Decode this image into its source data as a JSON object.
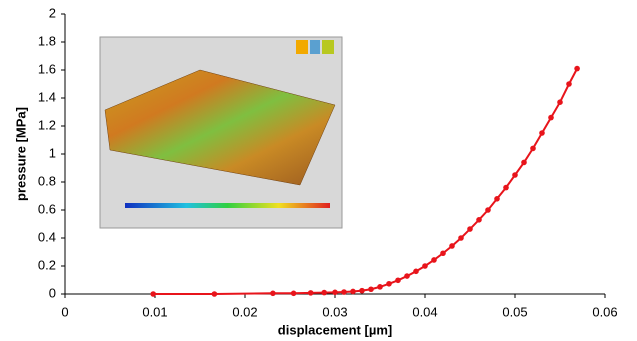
{
  "chart_data": {
    "type": "line",
    "x_label": "displacement [µm]",
    "y_label": "pressure [MPa]",
    "x": [
      0.0098,
      0.0166,
      0.0231,
      0.0254,
      0.0273,
      0.0288,
      0.03,
      0.031,
      0.032,
      0.033,
      0.034,
      0.035,
      0.036,
      0.037,
      0.038,
      0.039,
      0.04,
      0.041,
      0.042,
      0.043,
      0.044,
      0.045,
      0.046,
      0.047,
      0.048,
      0.049,
      0.05,
      0.051,
      0.052,
      0.053,
      0.054,
      0.055,
      0.056,
      0.0569
    ],
    "series": [
      {
        "color": "#e8141b",
        "values": [
          0,
          0,
          0.005,
          0.005,
          0.008,
          0.01,
          0.012,
          0.014,
          0.018,
          0.024,
          0.034,
          0.051,
          0.073,
          0.098,
          0.128,
          0.162,
          0.2,
          0.243,
          0.291,
          0.343,
          0.4,
          0.464,
          0.53,
          0.6,
          0.68,
          0.76,
          0.85,
          0.94,
          1.04,
          1.15,
          1.26,
          1.37,
          1.5,
          1.61
        ]
      }
    ],
    "xlim": [
      0,
      0.06
    ],
    "xticks": [
      0,
      0.01,
      0.02,
      0.03,
      0.04,
      0.05,
      0.06
    ],
    "ylim": [
      0,
      2
    ],
    "yticks": [
      0,
      0.2,
      0.4,
      0.6,
      0.8,
      1,
      1.2,
      1.4,
      1.6,
      1.8,
      2
    ]
  }
}
